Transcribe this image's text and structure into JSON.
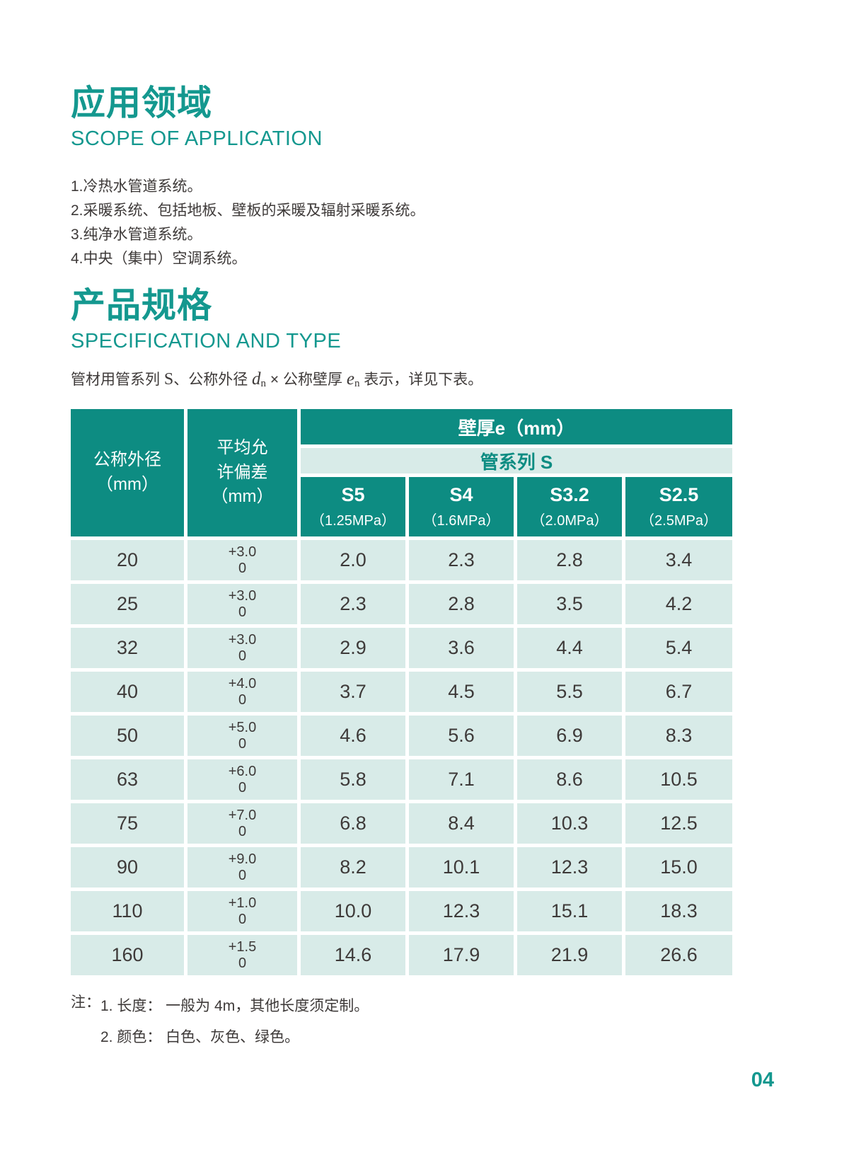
{
  "colors": {
    "accent": "#14988f",
    "table_header": "#0d8c82",
    "row_bg": "#d8ebe8",
    "text": "#3e3a39"
  },
  "section_application": {
    "title_zh": "应用领域",
    "title_en": "SCOPE OF APPLICATION",
    "items": [
      "1.冷热水管道系统。",
      "2.采暖系统、包括地板、壁板的采暖及辐射采暖系统。",
      "3.纯净水管道系统。",
      "4.中央（集中）空调系统。"
    ]
  },
  "section_spec": {
    "title_zh": "产品规格",
    "title_en": "SPECIFICATION AND TYPE",
    "intro_parts": [
      "管材用管系列 ",
      "S",
      "、公称外径 ",
      "d",
      "n",
      " × 公称壁厚 ",
      "e",
      "n",
      " 表示，详见下表。"
    ]
  },
  "table": {
    "col1_header_lines": [
      "公称外径",
      "（mm）"
    ],
    "col2_header_lines": [
      "平均允",
      "许偏差",
      "（mm）"
    ],
    "wall_header": "壁厚e（mm）",
    "series_header": "管系列 S",
    "sub_headers": [
      {
        "name": "S5",
        "pressure": "（1.25MPa）"
      },
      {
        "name": "S4",
        "pressure": "（1.6MPa）"
      },
      {
        "name": "S3.2",
        "pressure": "（2.0MPa）"
      },
      {
        "name": "S2.5",
        "pressure": "（2.5MPa）"
      }
    ],
    "rows": [
      {
        "od": "20",
        "dev": [
          "+3.0",
          "0"
        ],
        "values": [
          "2.0",
          "2.3",
          "2.8",
          "3.4"
        ]
      },
      {
        "od": "25",
        "dev": [
          "+3.0",
          "0"
        ],
        "values": [
          "2.3",
          "2.8",
          "3.5",
          "4.2"
        ]
      },
      {
        "od": "32",
        "dev": [
          "+3.0",
          "0"
        ],
        "values": [
          "2.9",
          "3.6",
          "4.4",
          "5.4"
        ]
      },
      {
        "od": "40",
        "dev": [
          "+4.0",
          "0"
        ],
        "values": [
          "3.7",
          "4.5",
          "5.5",
          "6.7"
        ]
      },
      {
        "od": "50",
        "dev": [
          "+5.0",
          "0"
        ],
        "values": [
          "4.6",
          "5.6",
          "6.9",
          "8.3"
        ]
      },
      {
        "od": "63",
        "dev": [
          "+6.0",
          "0"
        ],
        "values": [
          "5.8",
          "7.1",
          "8.6",
          "10.5"
        ]
      },
      {
        "od": "75",
        "dev": [
          "+7.0",
          "0"
        ],
        "values": [
          "6.8",
          "8.4",
          "10.3",
          "12.5"
        ]
      },
      {
        "od": "90",
        "dev": [
          "+9.0",
          "0"
        ],
        "values": [
          "8.2",
          "10.1",
          "12.3",
          "15.0"
        ]
      },
      {
        "od": "110",
        "dev": [
          "+1.0",
          "0"
        ],
        "values": [
          "10.0",
          "12.3",
          "15.1",
          "18.3"
        ]
      },
      {
        "od": "160",
        "dev": [
          "+1.5",
          "0"
        ],
        "values": [
          "14.6",
          "17.9",
          "21.9",
          "26.6"
        ]
      }
    ]
  },
  "notes": {
    "prefix": "注：",
    "items": [
      "1. 长度： 一般为 4m，其他长度须定制。",
      "2. 颜色： 白色、灰色、绿色。"
    ]
  },
  "page": {
    "number": "04"
  }
}
